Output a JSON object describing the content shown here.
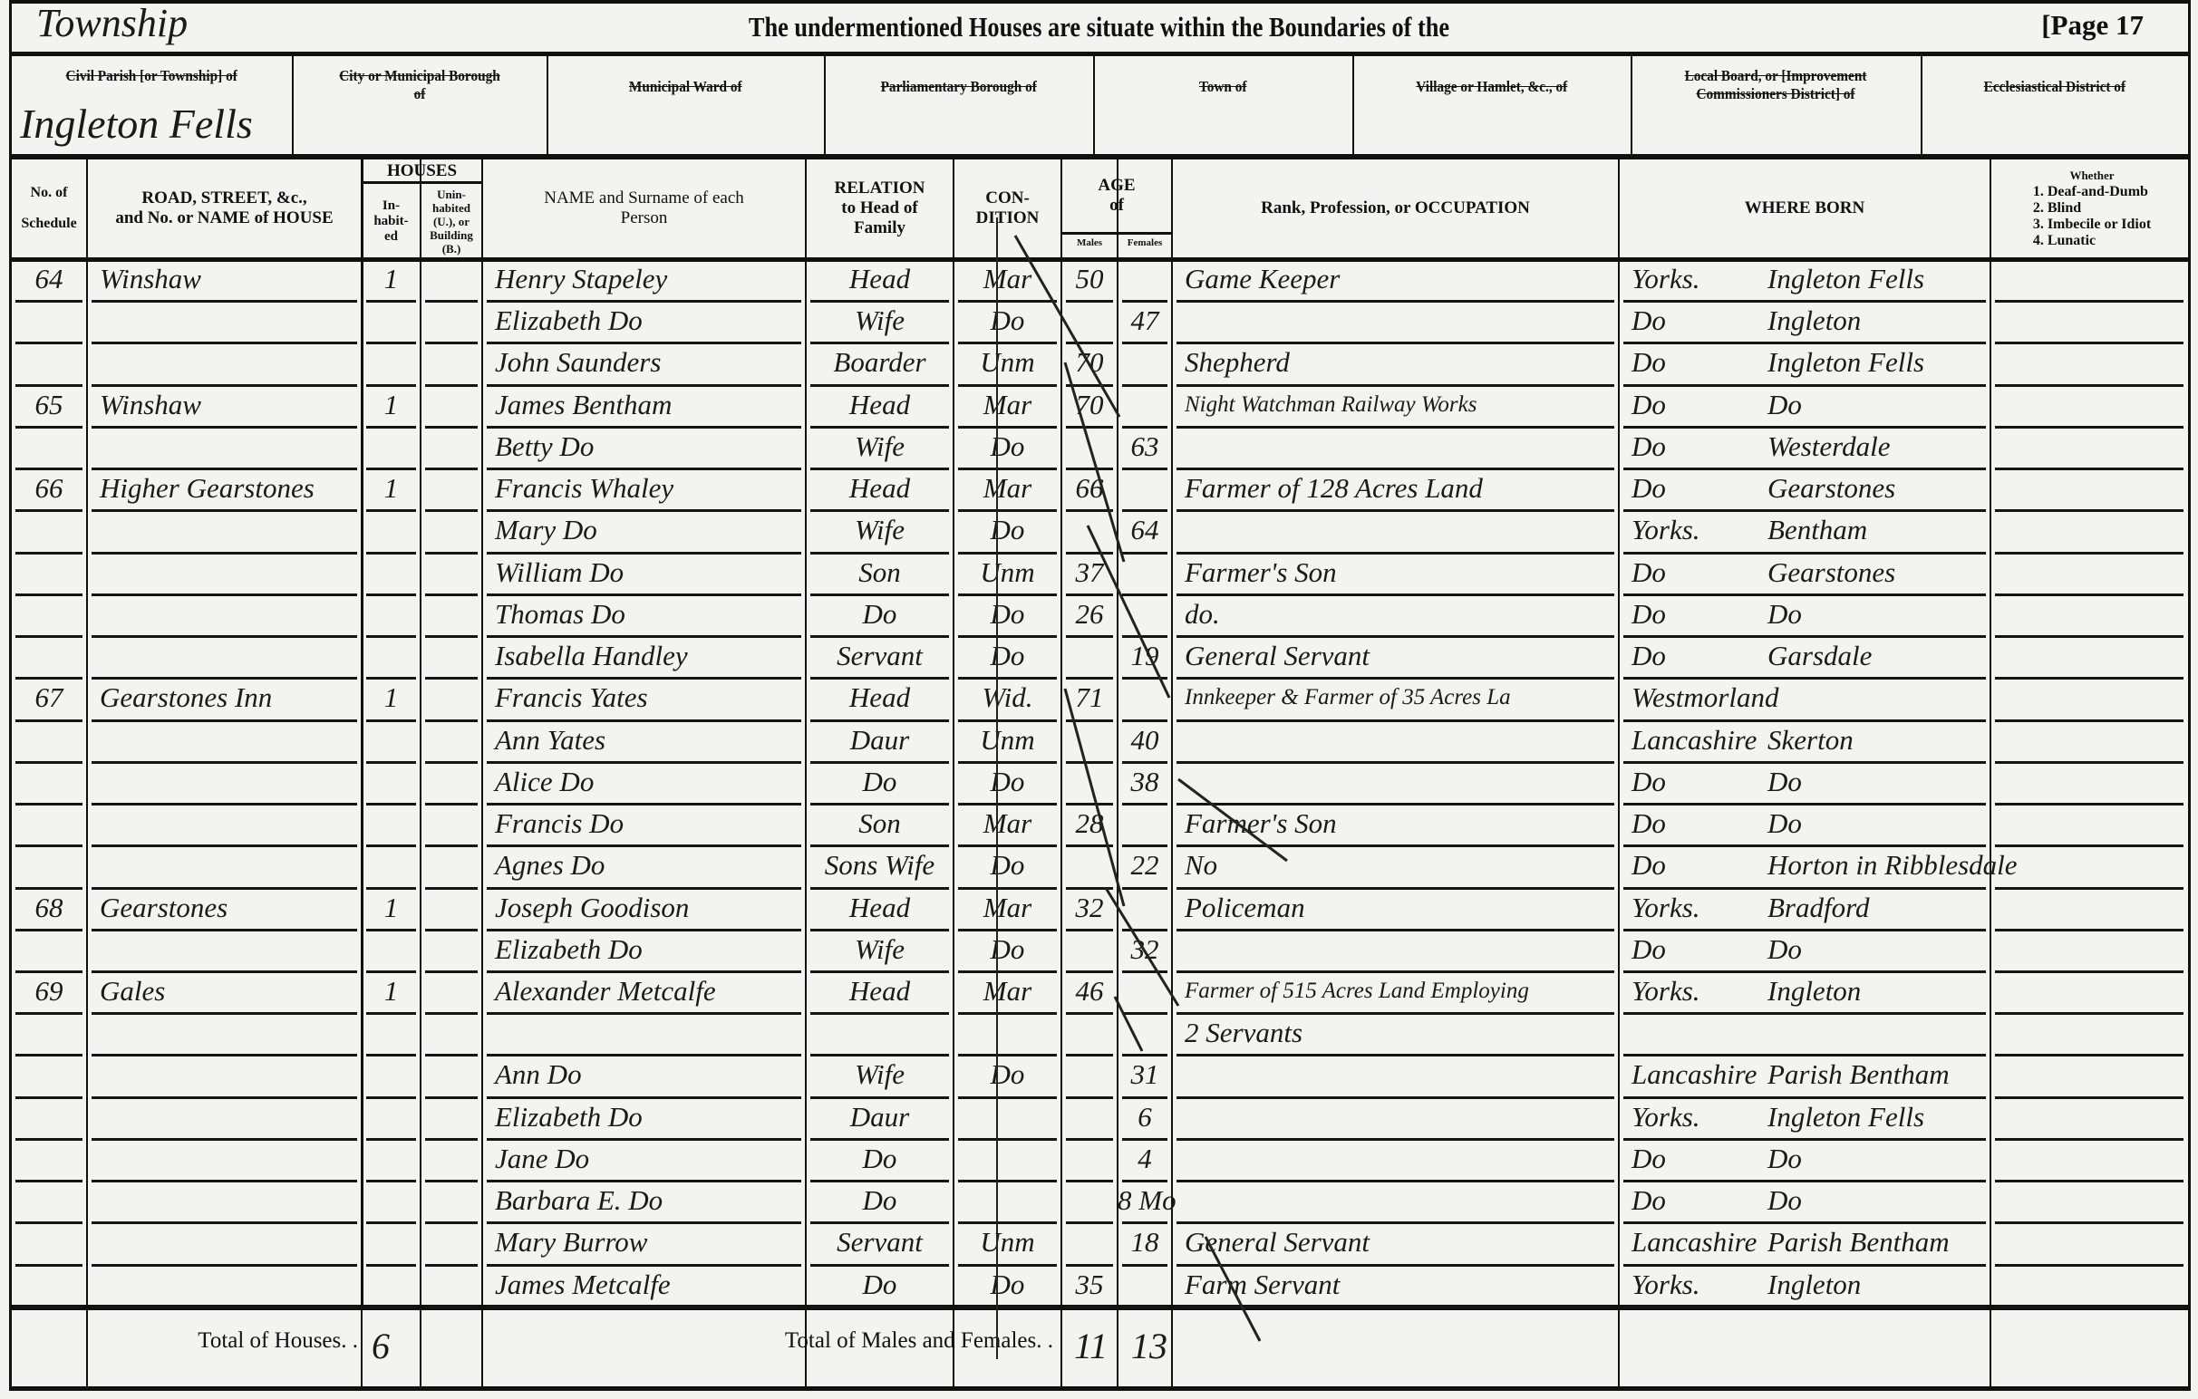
{
  "header": {
    "handwritten_division": "Township",
    "title": "The undermentioned Houses are situate within the Boundaries of the",
    "page": "[Page 17"
  },
  "boundaries": [
    {
      "label": "Civil Parish [or Township] of",
      "value": "Ingleton Fells"
    },
    {
      "label": "City or Municipal Borough of",
      "value": ""
    },
    {
      "label": "Municipal Ward of",
      "value": ""
    },
    {
      "label": "Parliamentary Borough of",
      "value": ""
    },
    {
      "label": "Town of",
      "value": ""
    },
    {
      "label": "Village or Hamlet, &c., of",
      "value": ""
    },
    {
      "label": "Local Board, or [Improvement Commissioners District] of",
      "value": ""
    },
    {
      "label": "Ecclesiastical District of",
      "value": ""
    }
  ],
  "columns": {
    "schedule": [
      "No. of",
      "Schedule"
    ],
    "road": [
      "ROAD, STREET, &c.,",
      "and No. or NAME of HOUSE"
    ],
    "houses": "HOUSES",
    "inhabited": "In-habit-ed",
    "uninhabited": "Unin-habited (U.), or Building (B.)",
    "name": [
      "NAME and Surname of each",
      "Person"
    ],
    "relation": [
      "RELATION",
      "to Head of",
      "Family"
    ],
    "condition": [
      "CON-",
      "DITION"
    ],
    "age": [
      "AGE",
      "of"
    ],
    "males": "Males",
    "females": "Females",
    "occupation": "Rank, Profession, or OCCUPATION",
    "where_born": "WHERE BORN",
    "infirmity": [
      "Whether",
      "1. Deaf-and-Dumb",
      "2. Blind",
      "3. Imbecile or Idiot",
      "4. Lunatic"
    ]
  },
  "rows": [
    {
      "schedule": "64",
      "road": "Winshaw",
      "inhabited": "1",
      "name": "Henry Stapeley",
      "relation": "Head",
      "condition": "Mar",
      "male": "50",
      "female": "",
      "occupation": "Game Keeper",
      "born_county": "Yorks.",
      "born_place": "Ingleton Fells"
    },
    {
      "schedule": "",
      "road": "",
      "inhabited": "",
      "name": "Elizabeth Do",
      "relation": "Wife",
      "condition": "Do",
      "male": "",
      "female": "47",
      "occupation": "",
      "born_county": "Do",
      "born_place": "Ingleton"
    },
    {
      "schedule": "",
      "road": "",
      "inhabited": "",
      "name": "John Saunders",
      "relation": "Boarder",
      "condition": "Unm",
      "male": "70",
      "female": "",
      "occupation": "Shepherd",
      "born_county": "Do",
      "born_place": "Ingleton Fells"
    },
    {
      "schedule": "65",
      "road": "Winshaw",
      "inhabited": "1",
      "name": "James Bentham",
      "relation": "Head",
      "condition": "Mar",
      "male": "70",
      "female": "",
      "occupation": "Night Watchman Railway Works",
      "born_county": "Do",
      "born_place": "Do"
    },
    {
      "schedule": "",
      "road": "",
      "inhabited": "",
      "name": "Betty Do",
      "relation": "Wife",
      "condition": "Do",
      "male": "",
      "female": "63",
      "occupation": "",
      "born_county": "Do",
      "born_place": "Westerdale"
    },
    {
      "schedule": "66",
      "road": "Higher Gearstones",
      "inhabited": "1",
      "name": "Francis Whaley",
      "relation": "Head",
      "condition": "Mar",
      "male": "66",
      "female": "",
      "occupation": "Farmer of 128 Acres Land",
      "born_county": "Do",
      "born_place": "Gearstones"
    },
    {
      "schedule": "",
      "road": "",
      "inhabited": "",
      "name": "Mary Do",
      "relation": "Wife",
      "condition": "Do",
      "male": "",
      "female": "64",
      "occupation": "",
      "born_county": "Yorks.",
      "born_place": "Bentham"
    },
    {
      "schedule": "",
      "road": "",
      "inhabited": "",
      "name": "William Do",
      "relation": "Son",
      "condition": "Unm",
      "male": "37",
      "female": "",
      "occupation": "Farmer's Son",
      "born_county": "Do",
      "born_place": "Gearstones"
    },
    {
      "schedule": "",
      "road": "",
      "inhabited": "",
      "name": "Thomas Do",
      "relation": "Do",
      "condition": "Do",
      "male": "26",
      "female": "",
      "occupation": "do.",
      "born_county": "Do",
      "born_place": "Do"
    },
    {
      "schedule": "",
      "road": "",
      "inhabited": "",
      "name": "Isabella Handley",
      "relation": "Servant",
      "condition": "Do",
      "male": "",
      "female": "19",
      "occupation": "General Servant",
      "born_county": "Do",
      "born_place": "Garsdale"
    },
    {
      "schedule": "67",
      "road": "Gearstones Inn",
      "inhabited": "1",
      "name": "Francis Yates",
      "relation": "Head",
      "condition": "Wid.",
      "male": "71",
      "female": "",
      "occupation": "Innkeeper & Farmer of 35 Acres La",
      "born_county": "Westmorland",
      "born_place": ""
    },
    {
      "schedule": "",
      "road": "",
      "inhabited": "",
      "name": "Ann Yates",
      "relation": "Daur",
      "condition": "Unm",
      "male": "",
      "female": "40",
      "occupation": "",
      "born_county": "Lancashire",
      "born_place": "Skerton"
    },
    {
      "schedule": "",
      "road": "",
      "inhabited": "",
      "name": "Alice Do",
      "relation": "Do",
      "condition": "Do",
      "male": "",
      "female": "38",
      "occupation": "",
      "born_county": "Do",
      "born_place": "Do"
    },
    {
      "schedule": "",
      "road": "",
      "inhabited": "",
      "name": "Francis Do",
      "relation": "Son",
      "condition": "Mar",
      "male": "28",
      "female": "",
      "occupation": "Farmer's Son",
      "born_county": "Do",
      "born_place": "Do"
    },
    {
      "schedule": "",
      "road": "",
      "inhabited": "",
      "name": "Agnes Do",
      "relation": "Sons Wife",
      "condition": "Do",
      "male": "",
      "female": "22",
      "occupation": "No",
      "born_county": "Do",
      "born_place": "Horton in Ribblesdale"
    },
    {
      "schedule": "68",
      "road": "Gearstones",
      "inhabited": "1",
      "name": "Joseph Goodison",
      "relation": "Head",
      "condition": "Mar",
      "male": "32",
      "female": "",
      "occupation": "Policeman",
      "born_county": "Yorks.",
      "born_place": "Bradford"
    },
    {
      "schedule": "",
      "road": "",
      "inhabited": "",
      "name": "Elizabeth Do",
      "relation": "Wife",
      "condition": "Do",
      "male": "",
      "female": "32",
      "occupation": "",
      "born_county": "Do",
      "born_place": "Do"
    },
    {
      "schedule": "69",
      "road": "Gales",
      "inhabited": "1",
      "name": "Alexander Metcalfe",
      "relation": "Head",
      "condition": "Mar",
      "male": "46",
      "female": "",
      "occupation": "Farmer of 515 Acres Land Employing",
      "born_county": "Yorks.",
      "born_place": "Ingleton"
    },
    {
      "schedule": "",
      "road": "",
      "inhabited": "",
      "name": "",
      "relation": "",
      "condition": "",
      "male": "",
      "female": "",
      "occupation": "2 Servants",
      "born_county": "",
      "born_place": ""
    },
    {
      "schedule": "",
      "road": "",
      "inhabited": "",
      "name": "Ann Do",
      "relation": "Wife",
      "condition": "Do",
      "male": "",
      "female": "31",
      "occupation": "",
      "born_county": "Lancashire",
      "born_place": "Parish Bentham"
    },
    {
      "schedule": "",
      "road": "",
      "inhabited": "",
      "name": "Elizabeth Do",
      "relation": "Daur",
      "condition": "",
      "male": "",
      "female": "6",
      "occupation": "",
      "born_county": "Yorks.",
      "born_place": "Ingleton Fells"
    },
    {
      "schedule": "",
      "road": "",
      "inhabited": "",
      "name": "Jane Do",
      "relation": "Do",
      "condition": "",
      "male": "",
      "female": "4",
      "occupation": "",
      "born_county": "Do",
      "born_place": "Do"
    },
    {
      "schedule": "",
      "road": "",
      "inhabited": "",
      "name": "Barbara E. Do",
      "relation": "Do",
      "condition": "",
      "male": "",
      "female": "8 Mo",
      "occupation": "",
      "born_county": "Do",
      "born_place": "Do"
    },
    {
      "schedule": "",
      "road": "",
      "inhabited": "",
      "name": "Mary Burrow",
      "relation": "Servant",
      "condition": "Unm",
      "male": "",
      "female": "18",
      "occupation": "General Servant",
      "born_county": "Lancashire",
      "born_place": "Parish Bentham"
    },
    {
      "schedule": "",
      "road": "",
      "inhabited": "",
      "name": "James Metcalfe",
      "relation": "Do",
      "condition": "Do",
      "male": "35",
      "female": "",
      "occupation": "Farm Servant",
      "born_county": "Yorks.",
      "born_place": "Ingleton"
    }
  ],
  "totals": {
    "houses_label": "Total of Houses. .",
    "houses_inhabited": "6",
    "persons_label": "Total of Males and Females. .",
    "males": "11",
    "females": "13"
  }
}
